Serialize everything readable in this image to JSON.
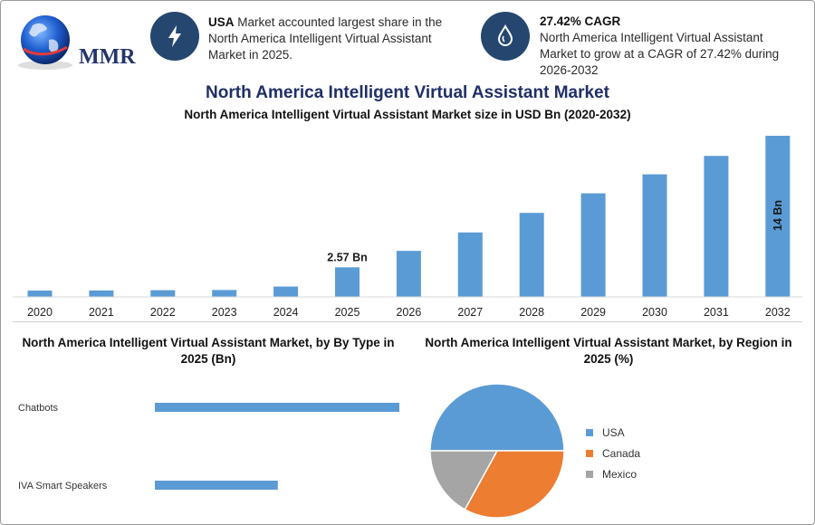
{
  "brand": {
    "logo_text": "MMR"
  },
  "info": [
    {
      "bold": "USA",
      "text": " Market accounted largest share in the North America Intelligent Virtual Assistant Market in 2025.",
      "icon": "lightning-icon"
    },
    {
      "bold": "27.42% CAGR",
      "text": "North America Intelligent Virtual Assistant Market to grow at a CAGR of 27.42% during 2026-2032",
      "icon": "drop-icon"
    }
  ],
  "colors": {
    "bar": "#5b9bd5",
    "navy": "#25476f",
    "usa": "#5b9bd5",
    "canada": "#ed7d31",
    "mexico": "#a5a5a5"
  },
  "chart_data": [
    {
      "type": "bar",
      "title": "North America Intelligent Virtual Assistant Market",
      "subtitle": "North America Intelligent Virtual Assistant Market size in USD Bn (2020-2032)",
      "categories": [
        "2020",
        "2021",
        "2022",
        "2023",
        "2024",
        "2025",
        "2026",
        "2027",
        "2028",
        "2029",
        "2030",
        "2031",
        "2032"
      ],
      "values": [
        0.55,
        0.56,
        0.58,
        0.6,
        0.9,
        2.57,
        4.0,
        5.6,
        7.3,
        9.0,
        10.65,
        12.25,
        14.0
      ],
      "data_labels": [
        {
          "category": "2025",
          "text": "2.57 Bn"
        },
        {
          "category": "2032",
          "text": "14 Bn"
        }
      ],
      "xlabel": "",
      "ylabel": "",
      "ylim": [
        0,
        14
      ]
    },
    {
      "type": "bar",
      "orientation": "horizontal",
      "title": "North America Intelligent Virtual Assistant Market, by By Type in 2025 (Bn)",
      "categories": [
        "Chatbots",
        "IVA Smart Speakers"
      ],
      "values": [
        1.67,
        0.84
      ],
      "xlim": [
        0,
        1.67
      ]
    },
    {
      "type": "pie",
      "title": "North America Intelligent Virtual Assistant Market, by Region in 2025 (%)",
      "categories": [
        "USA",
        "Canada",
        "Mexico"
      ],
      "values": [
        50,
        33,
        17
      ],
      "legend": "right"
    }
  ]
}
